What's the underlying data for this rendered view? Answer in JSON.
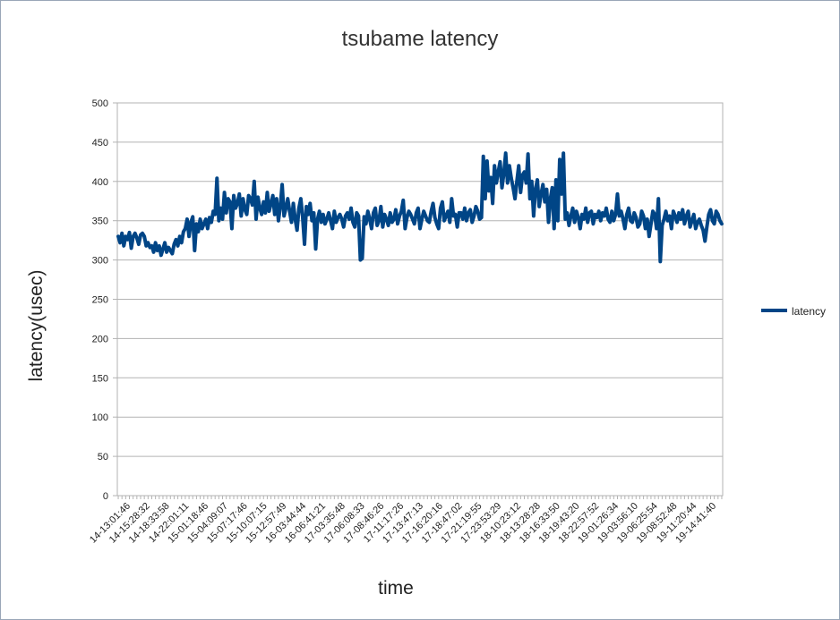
{
  "chart_data": {
    "type": "line",
    "title": "tsubame latency",
    "xlabel": "time",
    "ylabel": "latency(usec)",
    "ylim": [
      0,
      500
    ],
    "yticks": [
      0,
      50,
      100,
      150,
      200,
      250,
      300,
      350,
      400,
      450,
      500
    ],
    "grid": "horizontal",
    "legend_position": "right",
    "x_tick_labels": [
      "14-13:01:46",
      "14-15:28:32",
      "14-18:33:58",
      "14-22:01:11",
      "15-01:18:46",
      "15-04:09:07",
      "15-07:17:46",
      "15-10:07:15",
      "15-12:57:49",
      "16-03:44:44",
      "16-06:41:21",
      "17-03:35:48",
      "17-06:08:33",
      "17-08:46:26",
      "17-11:17:26",
      "17-13:47:13",
      "17-16:20:16",
      "17-18:47:02",
      "17-21:19:55",
      "17-23:53:29",
      "18-10:23:12",
      "18-13:28:28",
      "18-16:33:50",
      "18-19:43:20",
      "18-22:57:52",
      "19-01:26:34",
      "19-03:56:10",
      "19-06:25:54",
      "19-08:52:48",
      "19-11:20:44",
      "19-14:41:40"
    ],
    "series": [
      {
        "name": "latency",
        "color": "#004586",
        "values": [
          330,
          322,
          334,
          318,
          330,
          326,
          335,
          315,
          330,
          334,
          328,
          320,
          332,
          334,
          330,
          318,
          322,
          316,
          318,
          310,
          322,
          312,
          318,
          306,
          314,
          322,
          310,
          316,
          312,
          308,
          320,
          326,
          318,
          330,
          322,
          336,
          340,
          352,
          330,
          348,
          355,
          312,
          346,
          336,
          352,
          340,
          346,
          352,
          340,
          354,
          348,
          362,
          358,
          404,
          350,
          366,
          352,
          386,
          360,
          378,
          374,
          340,
          382,
          366,
          372,
          384,
          356,
          378,
          364,
          358,
          382,
          378,
          370,
          400,
          352,
          380,
          366,
          358,
          374,
          360,
          386,
          362,
          372,
          382,
          358,
          378,
          350,
          368,
          396,
          356,
          366,
          378,
          362,
          348,
          372,
          352,
          338,
          366,
          378,
          355,
          320,
          368,
          358,
          372,
          350,
          360,
          314,
          352,
          362,
          348,
          358,
          346,
          352,
          360,
          350,
          340,
          362,
          348,
          354,
          358,
          352,
          342,
          356,
          360,
          352,
          366,
          348,
          342,
          360,
          356,
          300,
          302,
          355,
          346,
          362,
          352,
          340,
          360,
          366,
          344,
          350,
          368,
          342,
          358,
          352,
          344,
          360,
          348,
          352,
          364,
          346,
          356,
          362,
          376,
          340,
          354,
          362,
          358,
          352,
          346,
          360,
          366,
          340,
          352,
          362,
          356,
          350,
          348,
          362,
          372,
          354,
          346,
          340,
          366,
          374,
          350,
          356,
          362,
          348,
          378,
          356,
          358,
          342,
          360,
          360,
          352,
          366,
          350,
          360,
          364,
          348,
          356,
          368,
          362,
          352,
          354,
          432,
          378,
          426,
          388,
          405,
          372,
          420,
          398,
          412,
          425,
          392,
          410,
          436,
          398,
          420,
          404,
          392,
          378,
          400,
          420,
          386,
          408,
          412,
          398,
          435,
          378,
          400,
          356,
          390,
          402,
          368,
          384,
          396,
          374,
          390,
          348,
          378,
          392,
          340,
          402,
          350,
          428,
          384,
          436,
          352,
          360,
          344,
          356,
          366,
          348,
          362,
          354,
          340,
          358,
          352,
          366,
          348,
          360,
          362,
          346,
          358,
          354,
          362,
          350,
          360,
          356,
          366,
          352,
          348,
          362,
          350,
          358,
          384,
          356,
          362,
          352,
          340,
          358,
          366,
          350,
          348,
          360,
          354,
          342,
          346,
          362,
          356,
          340,
          352,
          330,
          346,
          362,
          358,
          340,
          378,
          298,
          344,
          352,
          362,
          350,
          356,
          340,
          362,
          356,
          348,
          360,
          352,
          364,
          346,
          356,
          362,
          342,
          350,
          358,
          340,
          348,
          352,
          344,
          338,
          324,
          342,
          358,
          364,
          350,
          346,
          362,
          358,
          350,
          346
        ]
      }
    ]
  }
}
